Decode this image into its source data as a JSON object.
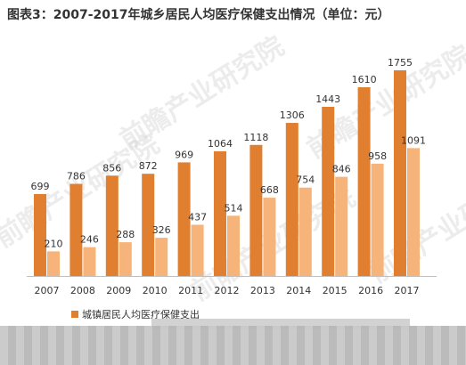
{
  "header": {
    "title": "图表3：2007-2017年城乡居民人均医疗保健支出情况（单位：元）"
  },
  "watermark": {
    "text": "前瞻产业研究院"
  },
  "colors": {
    "urban": "#e07f2f",
    "rural": "#f6b47a",
    "axis": "#bfbfbf",
    "text": "#333333"
  },
  "chart_data": {
    "type": "bar",
    "title": "图表3：2007-2017年城乡居民人均医疗保健支出情况（单位：元）",
    "categories": [
      "2007",
      "2008",
      "2009",
      "2010",
      "2011",
      "2012",
      "2013",
      "2014",
      "2015",
      "2016",
      "2017"
    ],
    "series": [
      {
        "name": "城镇居民人均医疗保健支出",
        "values": [
          699,
          786,
          856,
          872,
          969,
          1064,
          1118,
          1306,
          1443,
          1610,
          1755
        ]
      },
      {
        "name": "",
        "values": [
          210,
          246,
          288,
          326,
          437,
          514,
          668,
          754,
          846,
          958,
          1091
        ]
      }
    ],
    "ylim": [
      0,
      1800
    ],
    "grid": false,
    "legend": "bottom",
    "data_labels": true
  }
}
